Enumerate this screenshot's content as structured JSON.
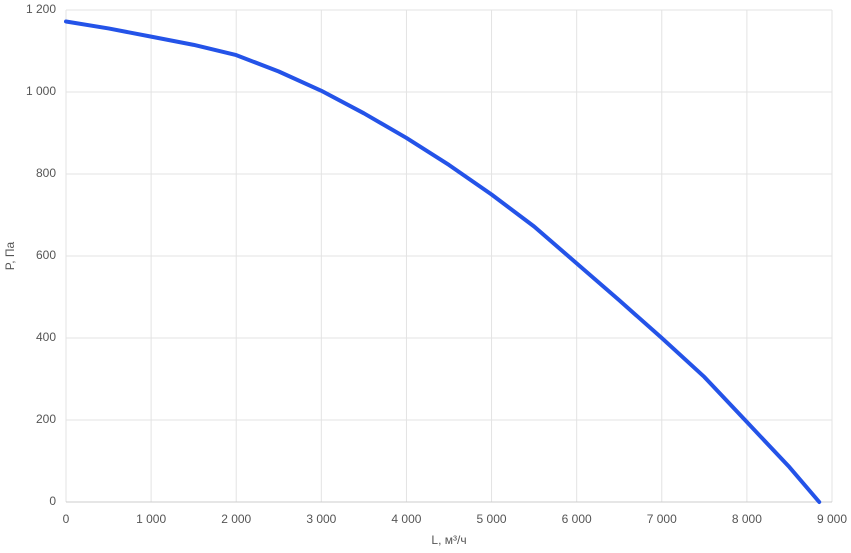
{
  "chart_data": {
    "type": "line",
    "x_label": "L, м³/ч",
    "y_label": "P, Па",
    "x": [
      0,
      500,
      1000,
      1500,
      2000,
      2500,
      3000,
      3500,
      4000,
      4500,
      5000,
      5500,
      6000,
      6500,
      7000,
      7500,
      8000,
      8500,
      8850
    ],
    "series": [
      {
        "color": "#2453e8",
        "values": [
          1172,
          1155,
          1135,
          1115,
          1090,
          1050,
          1003,
          948,
          888,
          822,
          750,
          672,
          582,
          492,
          400,
          305,
          195,
          85,
          0
        ]
      }
    ],
    "xlim": [
      0,
      9000
    ],
    "xticks": [
      0,
      {
        "value": 1000,
        "label": "1 000"
      },
      {
        "value": 2000,
        "label": "2 000"
      },
      {
        "value": 3000,
        "label": "3 000"
      },
      {
        "value": 4000,
        "label": "4 000"
      },
      {
        "value": 5000,
        "label": "5 000"
      },
      {
        "value": 6000,
        "label": "6 000"
      },
      {
        "value": 7000,
        "label": "7 000"
      },
      {
        "value": 8000,
        "label": "8 000"
      },
      {
        "value": 9000,
        "label": "9 000"
      }
    ],
    "ylim": [
      0,
      1200
    ],
    "yticks": [
      0,
      200,
      400,
      600,
      800,
      {
        "value": 1000,
        "label": "1 000"
      },
      {
        "value": 1200,
        "label": "1 200"
      }
    ],
    "grid": true
  }
}
